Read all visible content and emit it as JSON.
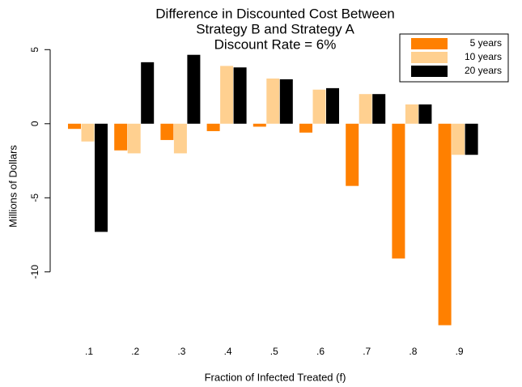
{
  "chart_data": {
    "type": "bar",
    "title": [
      "Difference in Discounted Cost Between",
      "Strategy B and Strategy A",
      "Discount Rate = 6%"
    ],
    "x_label": "Fraction of Infected Treated (f)",
    "y_label": "Millions of Dollars",
    "categories": [
      ".1",
      ".2",
      ".3",
      ".4",
      ".5",
      ".6",
      ".7",
      ".8",
      ".9"
    ],
    "series": [
      {
        "name": "5 years",
        "color": "#ff8000",
        "values": [
          -0.35,
          -1.8,
          -1.1,
          -0.5,
          -0.2,
          -0.6,
          -4.2,
          -9.1,
          -13.6
        ]
      },
      {
        "name": "10 years",
        "color": "#ffd090",
        "values": [
          -1.2,
          -2.0,
          -2.0,
          3.9,
          3.05,
          2.3,
          2.0,
          1.3,
          -2.1
        ]
      },
      {
        "name": "20 years",
        "color": "#000000",
        "values": [
          -7.3,
          4.15,
          4.65,
          3.8,
          3.0,
          2.4,
          2.0,
          1.3,
          -2.1
        ]
      }
    ],
    "ylim": [
      -14,
      6
    ],
    "yticks": [
      -10,
      -5,
      0,
      5
    ],
    "legend": "top-right"
  }
}
